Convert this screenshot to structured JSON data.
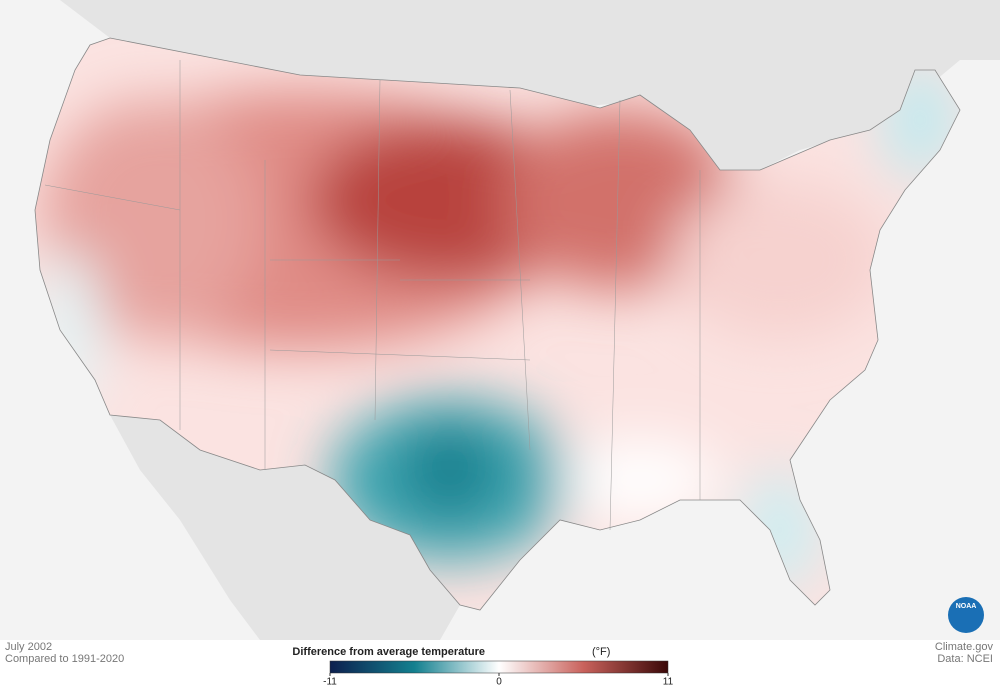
{
  "map": {
    "title": "July 2002",
    "subtitle": "Compared to 1991-2020"
  },
  "legend": {
    "title": "Difference from average temperature",
    "unit": "(°F)",
    "range": [
      -11,
      11
    ],
    "ticks": [
      -11,
      0,
      11
    ],
    "colors": [
      "#0d1f4e",
      "#13808f",
      "#ffffff",
      "#c9625c",
      "#3a0808"
    ]
  },
  "credits": {
    "site": "Climate.gov",
    "source": "Data: NCEI",
    "logo": "NOAA"
  }
}
